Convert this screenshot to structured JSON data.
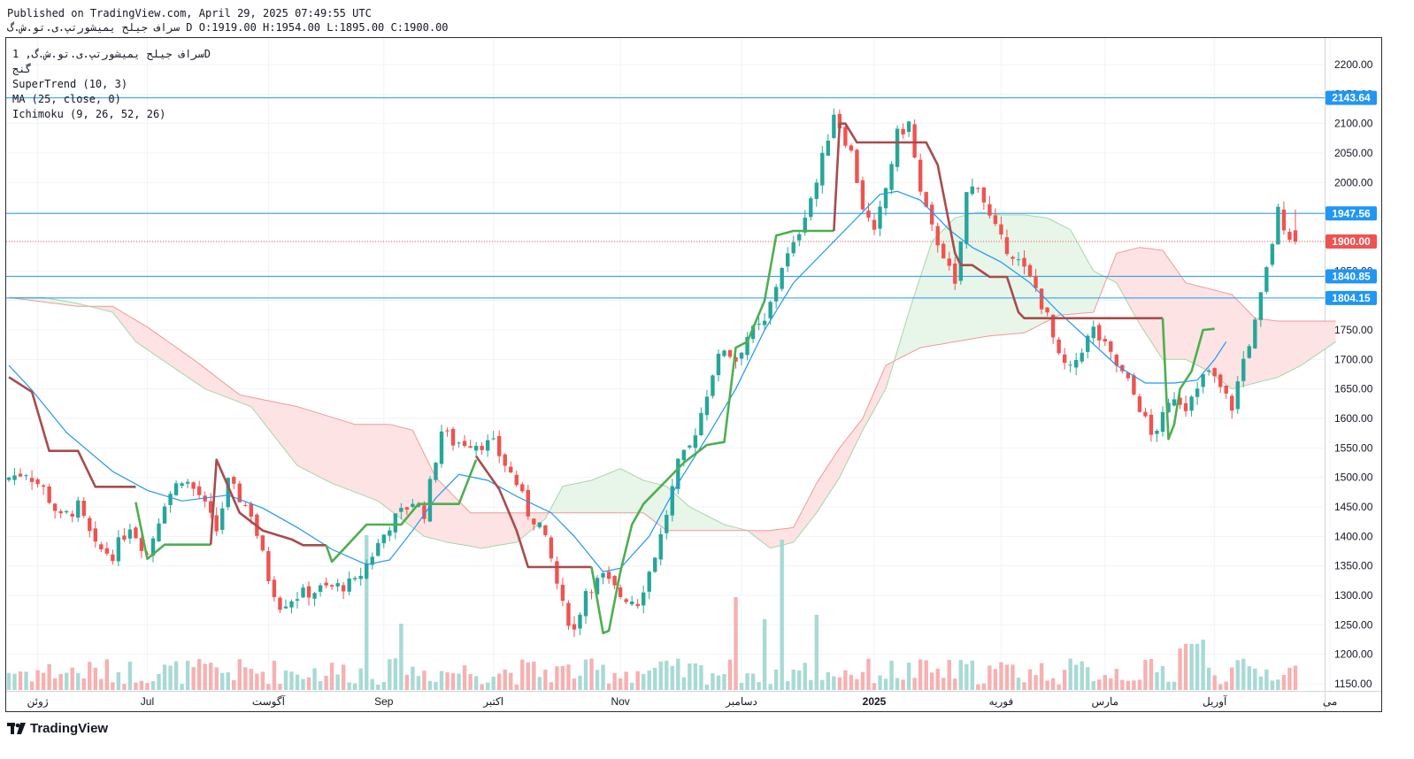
{
  "header": {
    "published": "Published on TradingView.com, April 29, 2025 07:49:55 UTC",
    "symbol_line": "سراف جيلح يميشورتپ.ی.تو.ش.گ D",
    "ohlc": "O:1919.00 H:1954.00 L:1895.00 C:1900.00"
  },
  "legend": {
    "symbol": "سراف جيلح يميشورتپ.ی.تو.ش.گ, 1D",
    "ticker": "گنج",
    "supertrend": "SuperTrend (10, 3)",
    "ma": "MA (25, close, 0)",
    "ichimoku": "Ichimoku (9, 26, 52, 26)"
  },
  "footer": {
    "logo_text": "TradingView"
  },
  "colors": {
    "up": "#26a69a",
    "down": "#ef5350",
    "st_up": "#4caf50",
    "st_down": "#a84c4c",
    "ma": "#2196f3",
    "hline": "#2196f3",
    "cloud_up": "#e8f5e9",
    "cloud_down": "#fde3e3"
  },
  "chart_data": {
    "type": "candlestick",
    "ylim": [
      1130,
      2250
    ],
    "y_ticks": [
      "2200.00",
      "2150.00",
      "2100.00",
      "2050.00",
      "2000.00",
      "1950.00",
      "1900.00",
      "1850.00",
      "1800.00",
      "1750.00",
      "1700.00",
      "1650.00",
      "1600.00",
      "1550.00",
      "1500.00",
      "1450.00",
      "1400.00",
      "1350.00",
      "1300.00",
      "1250.00",
      "1200.00",
      "1150.00"
    ],
    "x_labels": [
      {
        "text": "ژوئن",
        "bar": 5
      },
      {
        "text": "Jul",
        "bar": 24
      },
      {
        "text": "آگوست",
        "bar": 45
      },
      {
        "text": "Sep",
        "bar": 65
      },
      {
        "text": "اکتبر",
        "bar": 84
      },
      {
        "text": "Nov",
        "bar": 106
      },
      {
        "text": "دسامبر",
        "bar": 127
      },
      {
        "text": "2025",
        "bar": 150
      },
      {
        "text": "فوریه",
        "bar": 172
      },
      {
        "text": "مارس",
        "bar": 190
      },
      {
        "text": "آوریل",
        "bar": 209
      },
      {
        "text": "می",
        "bar": 229
      }
    ],
    "price_labels": [
      {
        "text": "2143.64",
        "value": 2143.64,
        "color": "#2196f3",
        "line": "solid"
      },
      {
        "text": "1947.56",
        "value": 1947.56,
        "color": "#2196f3",
        "line": "solid"
      },
      {
        "text": "1900.00",
        "value": 1900.0,
        "color": "#ef5350",
        "line": "dotted"
      },
      {
        "text": "1840.85",
        "value": 1840.85,
        "color": "#2196f3",
        "line": "solid"
      },
      {
        "text": "1804.15",
        "value": 1804.15,
        "color": "#2196f3",
        "line": "solid"
      }
    ],
    "close_key": [
      [
        0,
        1500
      ],
      [
        3,
        1510
      ],
      [
        6,
        1480
      ],
      [
        9,
        1430
      ],
      [
        12,
        1450
      ],
      [
        15,
        1380
      ],
      [
        18,
        1370
      ],
      [
        21,
        1420
      ],
      [
        24,
        1370
      ],
      [
        27,
        1460
      ],
      [
        30,
        1500
      ],
      [
        33,
        1470
      ],
      [
        36,
        1410
      ],
      [
        38,
        1490
      ],
      [
        42,
        1440
      ],
      [
        45,
        1330
      ],
      [
        47,
        1285
      ],
      [
        50,
        1300
      ],
      [
        54,
        1310
      ],
      [
        60,
        1320
      ],
      [
        66,
        1420
      ],
      [
        70,
        1460
      ],
      [
        72,
        1440
      ],
      [
        75,
        1580
      ],
      [
        77,
        1560
      ],
      [
        80,
        1560
      ],
      [
        84,
        1555
      ],
      [
        88,
        1490
      ],
      [
        90,
        1440
      ],
      [
        92,
        1420
      ],
      [
        94,
        1360
      ],
      [
        96,
        1280
      ],
      [
        98,
        1240
      ],
      [
        100,
        1310
      ],
      [
        103,
        1330
      ],
      [
        106,
        1300
      ],
      [
        109,
        1290
      ],
      [
        111,
        1340
      ],
      [
        113,
        1400
      ],
      [
        116,
        1520
      ],
      [
        118,
        1550
      ],
      [
        120,
        1610
      ],
      [
        122,
        1680
      ],
      [
        124,
        1720
      ],
      [
        126,
        1700
      ],
      [
        128,
        1740
      ],
      [
        131,
        1760
      ],
      [
        134,
        1860
      ],
      [
        136,
        1890
      ],
      [
        138,
        1950
      ],
      [
        140,
        2000
      ],
      [
        143,
        2120
      ],
      [
        146,
        2050
      ],
      [
        148,
        1960
      ],
      [
        150,
        1910
      ],
      [
        152,
        1990
      ],
      [
        154,
        2080
      ],
      [
        156,
        2100
      ],
      [
        158,
        1980
      ],
      [
        160,
        1920
      ],
      [
        162,
        1880
      ],
      [
        164,
        1820
      ],
      [
        166,
        1980
      ],
      [
        168,
        2000
      ],
      [
        170,
        1940
      ],
      [
        172,
        1900
      ],
      [
        174,
        1880
      ],
      [
        176,
        1850
      ],
      [
        178,
        1820
      ],
      [
        180,
        1770
      ],
      [
        182,
        1700
      ],
      [
        184,
        1680
      ],
      [
        186,
        1720
      ],
      [
        188,
        1750
      ],
      [
        190,
        1720
      ],
      [
        192,
        1690
      ],
      [
        194,
        1660
      ],
      [
        196,
        1620
      ],
      [
        198,
        1570
      ],
      [
        200,
        1600
      ],
      [
        202,
        1640
      ],
      [
        204,
        1620
      ],
      [
        206,
        1660
      ],
      [
        208,
        1680
      ],
      [
        210,
        1650
      ],
      [
        212,
        1620
      ],
      [
        214,
        1700
      ],
      [
        216,
        1760
      ],
      [
        218,
        1850
      ],
      [
        220,
        1950
      ],
      [
        222,
        1910
      ],
      [
        223,
        1900
      ]
    ],
    "supertrend": [
      {
        "trend": "down",
        "pts": [
          [
            0,
            1670
          ],
          [
            4,
            1645
          ],
          [
            7,
            1545
          ],
          [
            12,
            1545
          ],
          [
            15,
            1484
          ],
          [
            22,
            1484
          ]
        ]
      },
      {
        "trend": "up",
        "pts": [
          [
            22,
            1458
          ],
          [
            24,
            1362
          ],
          [
            27,
            1386
          ],
          [
            35,
            1386
          ]
        ]
      },
      {
        "trend": "down",
        "pts": [
          [
            35,
            1386
          ],
          [
            36,
            1530
          ],
          [
            40,
            1440
          ],
          [
            44,
            1410
          ],
          [
            49,
            1395
          ],
          [
            51,
            1385
          ],
          [
            55,
            1385
          ]
        ]
      },
      {
        "trend": "up",
        "pts": [
          [
            55,
            1385
          ],
          [
            56,
            1357
          ],
          [
            62,
            1420
          ],
          [
            68,
            1420
          ],
          [
            71,
            1455
          ],
          [
            78,
            1455
          ],
          [
            81,
            1530
          ]
        ]
      },
      {
        "trend": "down",
        "pts": [
          [
            81,
            1536
          ],
          [
            85,
            1480
          ],
          [
            88,
            1410
          ],
          [
            90,
            1348
          ],
          [
            101,
            1348
          ]
        ]
      },
      {
        "trend": "up",
        "pts": [
          [
            101,
            1348
          ],
          [
            103,
            1236
          ],
          [
            104,
            1240
          ],
          [
            106,
            1340
          ],
          [
            108,
            1420
          ],
          [
            110,
            1455
          ],
          [
            114,
            1495
          ],
          [
            117,
            1525
          ],
          [
            121,
            1555
          ],
          [
            124,
            1560
          ],
          [
            126,
            1720
          ],
          [
            128,
            1730
          ],
          [
            131,
            1800
          ],
          [
            133,
            1910
          ],
          [
            136,
            1918
          ],
          [
            143,
            1918
          ]
        ]
      },
      {
        "trend": "down",
        "pts": [
          [
            143,
            1918
          ],
          [
            144,
            2100
          ],
          [
            145,
            2100
          ],
          [
            147,
            2068
          ],
          [
            159,
            2068
          ],
          [
            161,
            2030
          ],
          [
            164,
            1880
          ],
          [
            165,
            1860
          ],
          [
            167,
            1860
          ],
          [
            170,
            1840
          ],
          [
            173,
            1840
          ],
          [
            175,
            1780
          ],
          [
            176,
            1770
          ],
          [
            200,
            1770
          ]
        ]
      },
      {
        "trend": "up",
        "pts": [
          [
            200,
            1770
          ],
          [
            201,
            1565
          ],
          [
            202,
            1590
          ],
          [
            203,
            1650
          ],
          [
            205,
            1680
          ],
          [
            207,
            1750
          ],
          [
            209,
            1752
          ]
        ]
      }
    ],
    "ma": [
      [
        0,
        1690
      ],
      [
        4,
        1648
      ],
      [
        10,
        1576
      ],
      [
        18,
        1510
      ],
      [
        24,
        1478
      ],
      [
        30,
        1460
      ],
      [
        38,
        1470
      ],
      [
        44,
        1448
      ],
      [
        50,
        1415
      ],
      [
        56,
        1378
      ],
      [
        62,
        1352
      ],
      [
        66,
        1360
      ],
      [
        70,
        1410
      ],
      [
        74,
        1465
      ],
      [
        78,
        1505
      ],
      [
        83,
        1495
      ],
      [
        88,
        1468
      ],
      [
        94,
        1440
      ],
      [
        98,
        1400
      ],
      [
        103,
        1340
      ],
      [
        106,
        1346
      ],
      [
        111,
        1400
      ],
      [
        116,
        1490
      ],
      [
        121,
        1568
      ],
      [
        126,
        1650
      ],
      [
        131,
        1750
      ],
      [
        136,
        1830
      ],
      [
        140,
        1870
      ],
      [
        146,
        1930
      ],
      [
        151,
        1980
      ],
      [
        154,
        1985
      ],
      [
        158,
        1970
      ],
      [
        163,
        1920
      ],
      [
        167,
        1890
      ],
      [
        172,
        1865
      ],
      [
        177,
        1830
      ],
      [
        182,
        1780
      ],
      [
        187,
        1735
      ],
      [
        192,
        1690
      ],
      [
        197,
        1660
      ],
      [
        202,
        1660
      ],
      [
        206,
        1665
      ],
      [
        209,
        1700
      ],
      [
        211,
        1730
      ]
    ],
    "cloud": {
      "a": [
        [
          0,
          1805
        ],
        [
          6,
          1805
        ],
        [
          12,
          1795
        ],
        [
          18,
          1780
        ],
        [
          22,
          1730
        ],
        [
          28,
          1690
        ],
        [
          34,
          1650
        ],
        [
          42,
          1620
        ],
        [
          50,
          1520
        ],
        [
          56,
          1490
        ],
        [
          60,
          1475
        ],
        [
          64,
          1460
        ],
        [
          68,
          1430
        ],
        [
          72,
          1400
        ],
        [
          76,
          1390
        ],
        [
          82,
          1380
        ],
        [
          88,
          1390
        ],
        [
          93,
          1430
        ],
        [
          96,
          1485
        ],
        [
          101,
          1495
        ],
        [
          106,
          1515
        ],
        [
          110,
          1495
        ],
        [
          114,
          1485
        ],
        [
          118,
          1450
        ],
        [
          124,
          1420
        ],
        [
          128,
          1410
        ],
        [
          132,
          1380
        ],
        [
          136,
          1390
        ],
        [
          140,
          1440
        ],
        [
          144,
          1500
        ],
        [
          148,
          1580
        ],
        [
          152,
          1650
        ],
        [
          156,
          1780
        ],
        [
          160,
          1900
        ],
        [
          164,
          1940
        ],
        [
          168,
          1950
        ],
        [
          172,
          1945
        ],
        [
          176,
          1945
        ],
        [
          180,
          1940
        ],
        [
          184,
          1920
        ],
        [
          188,
          1850
        ],
        [
          192,
          1830
        ],
        [
          196,
          1760
        ],
        [
          200,
          1700
        ],
        [
          204,
          1700
        ],
        [
          208,
          1680
        ],
        [
          212,
          1650
        ],
        [
          216,
          1660
        ],
        [
          220,
          1670
        ],
        [
          224,
          1690
        ],
        [
          230,
          1730
        ]
      ],
      "b": [
        [
          0,
          1805
        ],
        [
          12,
          1790
        ],
        [
          18,
          1790
        ],
        [
          24,
          1755
        ],
        [
          32,
          1700
        ],
        [
          40,
          1640
        ],
        [
          50,
          1620
        ],
        [
          60,
          1590
        ],
        [
          66,
          1590
        ],
        [
          70,
          1580
        ],
        [
          74,
          1500
        ],
        [
          80,
          1440
        ],
        [
          86,
          1440
        ],
        [
          94,
          1440
        ],
        [
          100,
          1440
        ],
        [
          106,
          1440
        ],
        [
          110,
          1440
        ],
        [
          114,
          1410
        ],
        [
          122,
          1410
        ],
        [
          128,
          1410
        ],
        [
          132,
          1410
        ],
        [
          136,
          1415
        ],
        [
          140,
          1490
        ],
        [
          144,
          1550
        ],
        [
          148,
          1600
        ],
        [
          152,
          1690
        ],
        [
          158,
          1720
        ],
        [
          164,
          1730
        ],
        [
          170,
          1740
        ],
        [
          176,
          1745
        ],
        [
          182,
          1775
        ],
        [
          188,
          1780
        ],
        [
          192,
          1880
        ],
        [
          196,
          1890
        ],
        [
          200,
          1885
        ],
        [
          204,
          1830
        ],
        [
          208,
          1820
        ],
        [
          212,
          1810
        ],
        [
          216,
          1770
        ],
        [
          220,
          1765
        ],
        [
          230,
          1765
        ]
      ]
    }
  }
}
